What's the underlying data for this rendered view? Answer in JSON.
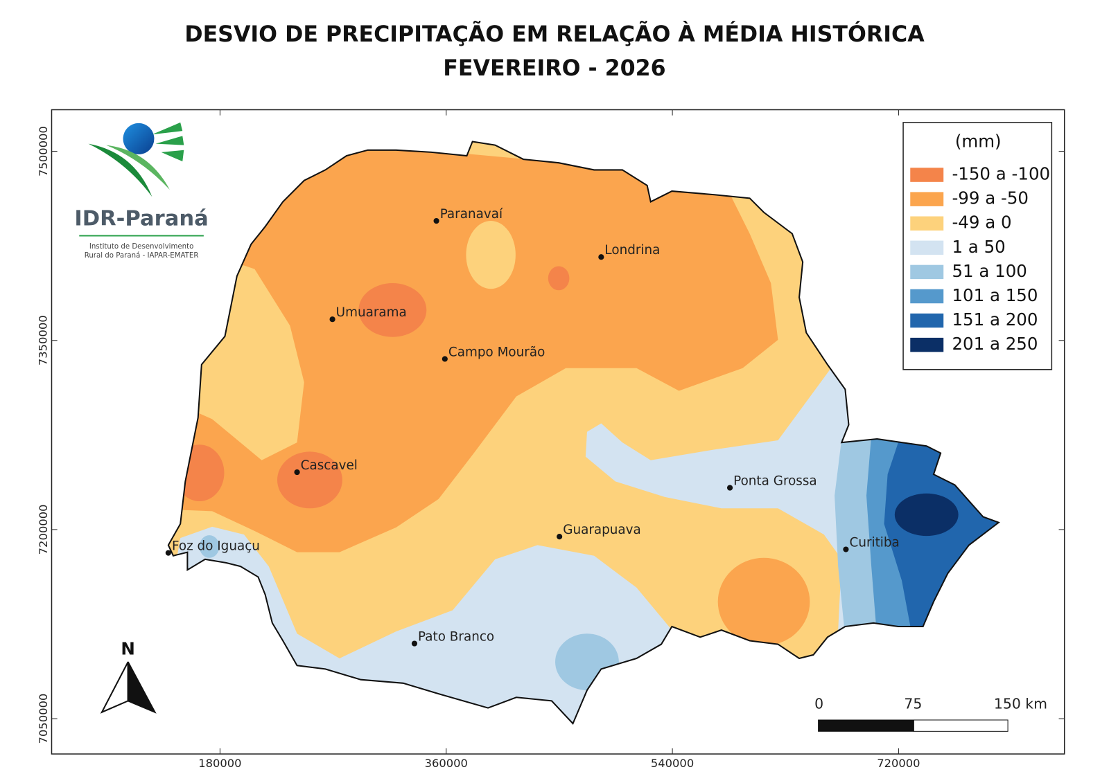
{
  "header": {
    "title": "DESVIO DE PRECIPITAÇÃO EM RELAÇÃO À MÉDIA HISTÓRICA",
    "subtitle": "FEVEREIRO - 2026"
  },
  "logo": {
    "name": "IDR-Paraná",
    "line1": "Instituto de Desenvolvimento",
    "line2": "Rural do Paraná - IAPAR-EMATER"
  },
  "map": {
    "xlim": [
      46000,
      852000
    ],
    "ylim": [
      7022000,
      7533000
    ],
    "xticks": [
      180000,
      360000,
      540000,
      720000
    ],
    "yticks": [
      7050000,
      7200000,
      7350000,
      7500000
    ],
    "cities": [
      "Paranavaí",
      "Londrina",
      "Umuarama",
      "Campo Mourão",
      "Cascavel",
      "Ponta Grossa",
      "Foz do Iguaçu",
      "Guarapuava",
      "Curitiba",
      "Pato Branco"
    ]
  },
  "legend": {
    "title": "(mm)",
    "items": [
      {
        "label": "-150 a -100",
        "color": "#f4844a"
      },
      {
        "label": "-99 a -50",
        "color": "#fba54e"
      },
      {
        "label": "-49 a 0",
        "color": "#fdd27c"
      },
      {
        "label": "1 a 50",
        "color": "#d3e3f1"
      },
      {
        "label": "51 a 100",
        "color": "#9fc8e2"
      },
      {
        "label": "101 a 150",
        "color": "#5599cc"
      },
      {
        "label": "151 a 200",
        "color": "#2166ad"
      },
      {
        "label": "201 a 250",
        "color": "#0b2f66"
      }
    ]
  },
  "north": "N",
  "scalebar": {
    "labels": [
      "0",
      "75",
      "150 km"
    ]
  }
}
